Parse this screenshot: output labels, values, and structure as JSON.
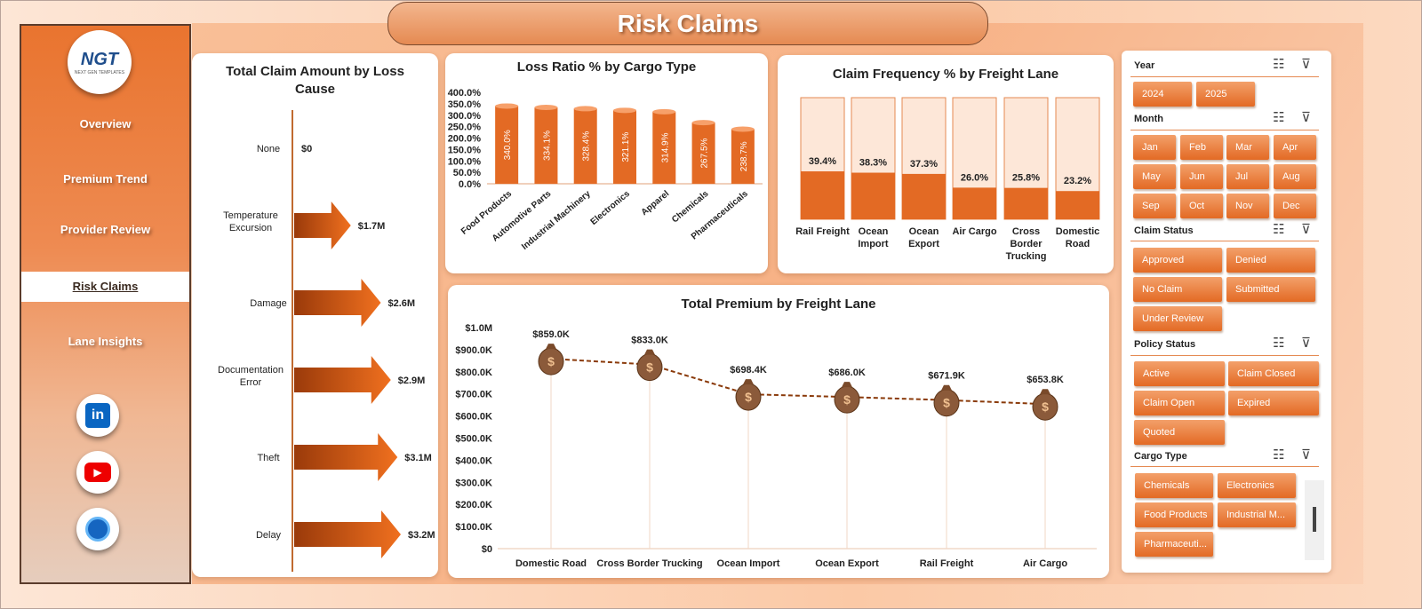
{
  "title": "Risk Claims",
  "logo": {
    "text": "NGT",
    "subtext": "NEXT GEN TEMPLATES"
  },
  "nav": [
    "Overview",
    "Premium Trend",
    "Provider Review",
    "Risk Claims",
    "Lane Insights"
  ],
  "social": [
    {
      "name": "linkedin-icon",
      "glyph": "in"
    },
    {
      "name": "youtube-icon",
      "glyph": "▶"
    },
    {
      "name": "globe-icon",
      "glyph": "🌐"
    }
  ],
  "colors": {
    "accent": "#e36a24",
    "dark_accent": "#c04f12",
    "light_bar": "#fde7d8"
  },
  "chart_data": [
    {
      "type": "bar",
      "title": "Total Claim Amount by Loss Cause",
      "categories": [
        "None",
        "Temperature Excursion",
        "Damage",
        "Documentation Error",
        "Theft",
        "Delay"
      ],
      "values": [
        0,
        1.7,
        2.6,
        2.9,
        3.1,
        3.2
      ],
      "value_labels": [
        "$0",
        "$1.7M",
        "$2.6M",
        "$2.9M",
        "$3.1M",
        "$3.2M"
      ],
      "orientation": "horizontal"
    },
    {
      "type": "bar",
      "title": "Loss Ratio % by Cargo Type",
      "categories": [
        "Food Products",
        "Automotive Parts",
        "Industrial Machinery",
        "Electronics",
        "Apparel",
        "Chemicals",
        "Pharmaceuticals"
      ],
      "values": [
        340.0,
        334.1,
        328.4,
        321.1,
        314.9,
        267.5,
        238.7
      ],
      "value_labels": [
        "340.0%",
        "334.1%",
        "328.4%",
        "321.1%",
        "314.9%",
        "267.5%",
        "238.7%"
      ],
      "y_ticks": [
        "400.0%",
        "350.0%",
        "300.0%",
        "250.0%",
        "200.0%",
        "150.0%",
        "100.0%",
        "50.0%",
        "0.0%"
      ],
      "ylim": [
        0,
        400
      ]
    },
    {
      "type": "bar",
      "title": "Claim Frequency % by Freight Lane",
      "categories": [
        "Rail Freight",
        "Ocean Import",
        "Ocean Export",
        "Air Cargo",
        "Cross Border Trucking",
        "Domestic Road"
      ],
      "values": [
        39.4,
        38.3,
        37.3,
        26.0,
        25.8,
        23.2
      ],
      "value_labels": [
        "39.4%",
        "38.3%",
        "37.3%",
        "26.0%",
        "25.8%",
        "23.2%"
      ],
      "ylim": [
        0,
        100
      ]
    },
    {
      "type": "line",
      "title": "Total Premium by Freight Lane",
      "categories": [
        "Domestic Road",
        "Cross Border Trucking",
        "Ocean Import",
        "Ocean Export",
        "Rail Freight",
        "Air Cargo"
      ],
      "values": [
        859.0,
        833.0,
        698.4,
        686.0,
        671.9,
        653.8
      ],
      "value_labels": [
        "$859.0K",
        "$833.0K",
        "$698.4K",
        "$686.0K",
        "$671.9K",
        "$653.8K"
      ],
      "y_ticks": [
        "$1.0M",
        "$900.0K",
        "$800.0K",
        "$700.0K",
        "$600.0K",
        "$500.0K",
        "$400.0K",
        "$300.0K",
        "$200.0K",
        "$100.0K",
        "$0"
      ],
      "ylim": [
        0,
        1000
      ],
      "marker": "money-bag"
    }
  ],
  "slicers": {
    "year": {
      "label": "Year",
      "items": [
        "2024",
        "2025"
      ]
    },
    "month": {
      "label": "Month",
      "items": [
        "Jan",
        "Feb",
        "Mar",
        "Apr",
        "May",
        "Jun",
        "Jul",
        "Aug",
        "Sep",
        "Oct",
        "Nov",
        "Dec"
      ]
    },
    "claim_status": {
      "label": "Claim Status",
      "items": [
        "Approved",
        "Denied",
        "No Claim",
        "Submitted",
        "Under Review"
      ]
    },
    "policy_status": {
      "label": "Policy Status",
      "items": [
        "Active",
        "Claim Closed",
        "Claim Open",
        "Expired",
        "Quoted"
      ]
    },
    "cargo_type": {
      "label": "Cargo Type",
      "items": [
        "Chemicals",
        "Electronics",
        "Food Products",
        "Industrial M...",
        "Pharmaceuti..."
      ]
    }
  }
}
